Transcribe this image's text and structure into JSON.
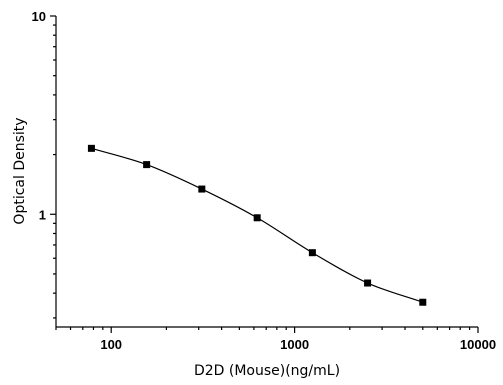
{
  "chart_data": {
    "type": "scatter",
    "title": "",
    "xlabel": "D2D (Mouse)(ng/mL)",
    "ylabel": "Optical Density",
    "x_scale": "log",
    "y_scale": "log",
    "xlim": [
      50,
      10000
    ],
    "ylim": [
      0.27,
      10
    ],
    "x_ticks": [
      100,
      1000,
      10000
    ],
    "x_tick_labels": [
      "100",
      "1000",
      "10000"
    ],
    "y_ticks": [
      1,
      10
    ],
    "y_tick_labels": [
      "1",
      "10"
    ],
    "grid": false,
    "legend": "none",
    "fit_line": "4PL",
    "series": [
      {
        "x": [
          78,
          156,
          312,
          625,
          1250,
          2500,
          5000
        ],
        "y": [
          2.15,
          1.78,
          1.34,
          0.96,
          0.64,
          0.45,
          0.36
        ]
      }
    ]
  }
}
